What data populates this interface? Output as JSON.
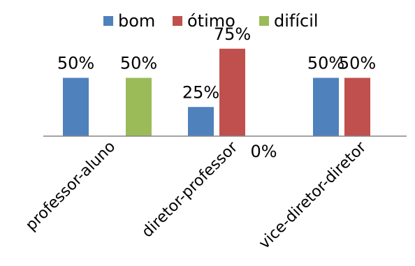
{
  "chart_data": {
    "type": "bar",
    "categories": [
      "professor-aluno",
      "diretor-professor",
      "vice-diretor-diretor"
    ],
    "series": [
      {
        "name": "bom",
        "color": "#4F81BD",
        "values": [
          0.5,
          0.25,
          0.5
        ]
      },
      {
        "name": "ótimo",
        "color": "#C0504D",
        "values": [
          null,
          0.75,
          0.5
        ]
      },
      {
        "name": "difícil",
        "color": "#9BBB59",
        "values": [
          0.5,
          0.0,
          null
        ]
      }
    ],
    "data_labels": [
      [
        "50%",
        "25%",
        "50%"
      ],
      [
        "",
        "75%",
        "50%"
      ],
      [
        "50%",
        "0%",
        ""
      ]
    ],
    "ylim": [
      0,
      1.0
    ],
    "grid": false,
    "legend_position": "top"
  }
}
